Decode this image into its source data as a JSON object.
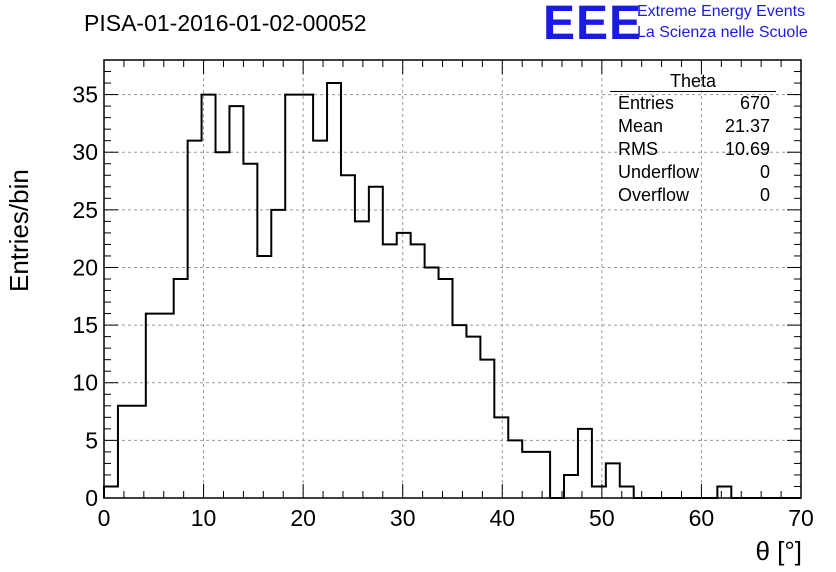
{
  "run_title": "PISA-01-2016-01-02-00052",
  "logo": {
    "text": "EEE",
    "line1": "Extreme Energy Events",
    "line2": "La Scienza nelle Scuole",
    "color": "#1a1ae6"
  },
  "stats": {
    "title": "Theta",
    "rows": [
      {
        "label": "Entries",
        "value": "670"
      },
      {
        "label": "Mean",
        "value": "21.37"
      },
      {
        "label": "RMS",
        "value": "10.69"
      },
      {
        "label": "Underflow",
        "value": "0"
      },
      {
        "label": "Overflow",
        "value": "0"
      }
    ]
  },
  "chart_data": {
    "type": "histogram",
    "xlabel": "θ [°]",
    "ylabel": "Entries/bin",
    "xlim": [
      0,
      70
    ],
    "ylim": [
      0,
      38
    ],
    "x_ticks": [
      0,
      10,
      20,
      30,
      40,
      50,
      60,
      70
    ],
    "y_ticks": [
      0,
      5,
      10,
      15,
      20,
      25,
      30,
      35
    ],
    "grid": true,
    "bin_width": 1.4,
    "bin_start": 0,
    "counts": [
      1,
      8,
      8,
      16,
      16,
      19,
      31,
      35,
      30,
      34,
      29,
      21,
      25,
      35,
      35,
      31,
      36,
      28,
      24,
      27,
      22,
      23,
      22,
      20,
      19,
      15,
      14,
      12,
      7,
      5,
      4,
      4,
      0,
      2,
      6,
      1,
      3,
      1,
      0,
      0,
      0,
      0,
      0,
      0,
      1,
      0,
      0,
      0,
      0,
      0
    ],
    "line_color": "#000000"
  }
}
